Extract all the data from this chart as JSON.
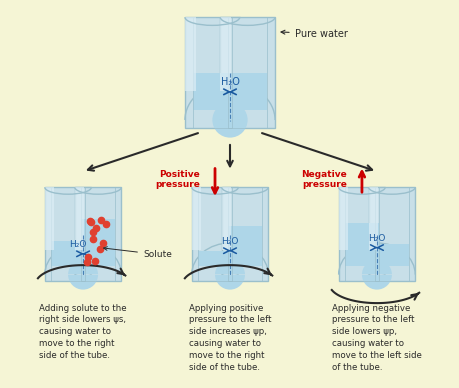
{
  "bg_color": "#f5f5d5",
  "water_color": "#aed6e8",
  "water_dark": "#8bbfd4",
  "tube_color": "#c8dfe8",
  "tube_edge": "#9abfcc",
  "tube_glass": "#ddeef5",
  "solute_color": "#e04030",
  "arrow_color": "#2a2a2a",
  "red_arrow": "#cc0000",
  "blue_arrow": "#1a5aa0",
  "text_color": "#2a2a2a",
  "label_color": "#cc6600",
  "pure_water_label": "Pure water",
  "h2o_label": "H₂O",
  "solute_label": "Solute",
  "pos_pressure_label": "Positive\npressure",
  "neg_pressure_label": "Negative\npressure",
  "caption1": "Adding solute to the\nright side lowers ψs,\ncausing water to\nmove to the right\nside of the tube.",
  "caption2": "Applying positive\npressure to the left\nside increases ψp,\ncausing water to\nmove to the right\nside of the tube.",
  "caption3": "Applying negative\npressure to the left\nside lowers ψp,\ncausing water to\nmove to the left side\nof the tube."
}
